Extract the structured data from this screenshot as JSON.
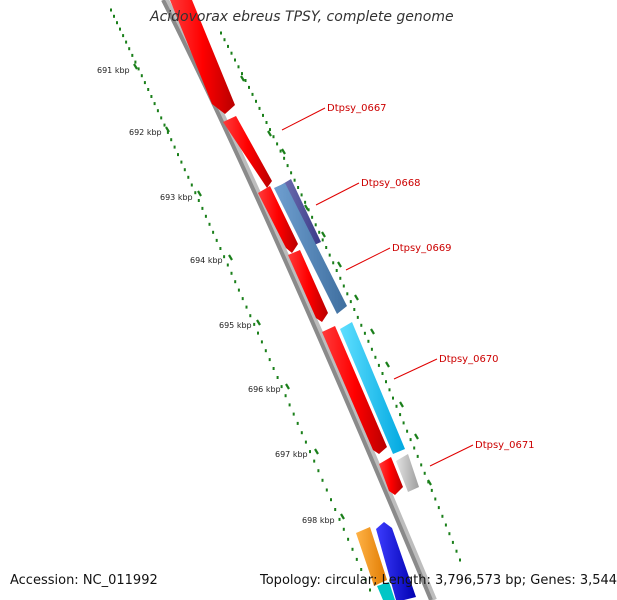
{
  "title": "Acidovorax ebreus TPSY, complete genome",
  "footer": {
    "accession": "Accession: NC_011992",
    "summary": "Topology: circular; Length: 3,796,573 bp; Genes: 3,544"
  },
  "colors": {
    "backbone": "#8a8a8a",
    "tick": "#1a7f1a",
    "label_line": "#e00000",
    "label_text": "#cc0000"
  },
  "ticks": [
    {
      "label": "691 kbp"
    },
    {
      "label": "692 kbp"
    },
    {
      "label": "693 kbp"
    },
    {
      "label": "694 kbp"
    },
    {
      "label": "695 kbp"
    },
    {
      "label": "696 kbp"
    },
    {
      "label": "697 kbp"
    },
    {
      "label": "698 kbp"
    }
  ],
  "gene_labels": [
    {
      "text": "Dtpsy_0667"
    },
    {
      "text": "Dtpsy_0668"
    },
    {
      "text": "Dtpsy_0669"
    },
    {
      "text": "Dtpsy_0670"
    },
    {
      "text": "Dtpsy_0671"
    }
  ],
  "features": [
    {
      "track": "forward",
      "color": "red"
    },
    {
      "track": "forward",
      "color": "red"
    },
    {
      "track": "forward",
      "color": "red"
    },
    {
      "track": "forward",
      "color": "red"
    },
    {
      "track": "forward",
      "color": "red"
    },
    {
      "track": "forward",
      "color": "red"
    },
    {
      "track": "cds",
      "color": "darkslateblue"
    },
    {
      "track": "cds",
      "color": "steelblue"
    },
    {
      "track": "cds",
      "color": "deepskyblue"
    },
    {
      "track": "cds",
      "color": "silver"
    },
    {
      "track": "outer",
      "color": "orange"
    },
    {
      "track": "outer",
      "color": "blue"
    }
  ]
}
